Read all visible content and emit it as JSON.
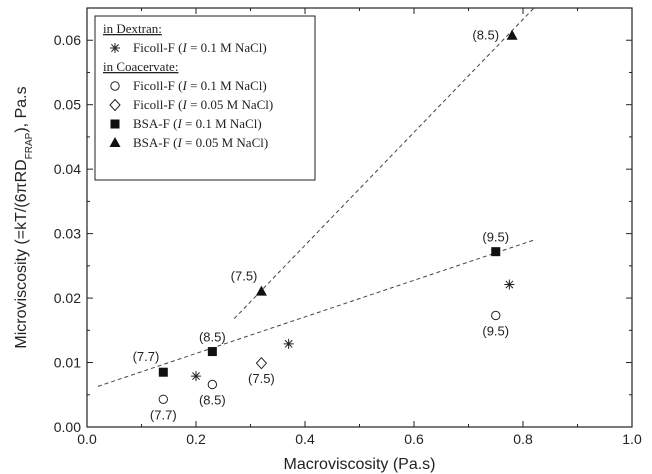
{
  "chart_data": {
    "type": "scatter",
    "xlabel": "Macroviscosity (Pa.s)",
    "ylabel": {
      "pre": "Microviscosity (=kT/(6",
      "pi": "π",
      "mid": "RD",
      "sub": "FRAP",
      "post": "), Pa.s"
    },
    "xlim": [
      0.0,
      1.0
    ],
    "ylim": [
      0.0,
      0.065
    ],
    "x_ticks": [
      "0.0",
      "0.2",
      "0.4",
      "0.6",
      "0.8",
      "1.0"
    ],
    "y_ticks": [
      "0.00",
      "0.01",
      "0.02",
      "0.03",
      "0.04",
      "0.05",
      "0.06"
    ],
    "legend": {
      "position": "top-left",
      "groups": [
        {
          "heading": "in Dextran:",
          "entries": [
            {
              "marker": "star",
              "pre": "Ficoll-F (",
              "ivar": "I",
              "post": " = 0.1 M NaCl)"
            }
          ]
        },
        {
          "heading": "in Coacervate:",
          "entries": [
            {
              "marker": "circle",
              "pre": "Ficoll-F (",
              "ivar": "I",
              "post": " = 0.1 M NaCl)"
            },
            {
              "marker": "diamond",
              "pre": "Ficoll-F (",
              "ivar": "I",
              "post": " = 0.05 M NaCl)"
            },
            {
              "marker": "square",
              "pre": "BSA-F (",
              "ivar": "I",
              "post": " = 0.1 M NaCl)"
            },
            {
              "marker": "triangle",
              "pre": "BSA-F (",
              "ivar": "I",
              "post": " = 0.05 M NaCl)"
            }
          ]
        }
      ]
    },
    "series": [
      {
        "marker": "star",
        "points": [
          [
            0.2,
            0.0079
          ],
          [
            0.37,
            0.0129
          ],
          [
            0.775,
            0.0221
          ]
        ]
      },
      {
        "marker": "circle",
        "points": [
          [
            0.14,
            0.0043,
            "(7.7)",
            "below"
          ],
          [
            0.23,
            0.0066,
            "(8.5)",
            "below"
          ],
          [
            0.75,
            0.0173,
            "(9.5)",
            "below"
          ]
        ]
      },
      {
        "marker": "diamond",
        "points": [
          [
            0.32,
            0.0099,
            "(7.5)",
            "below"
          ]
        ]
      },
      {
        "marker": "square",
        "points": [
          [
            0.14,
            0.0085,
            "(7.7)",
            "above-left"
          ],
          [
            0.23,
            0.0117,
            "(8.5)",
            "above"
          ],
          [
            0.75,
            0.0272,
            "(9.5)",
            "above"
          ]
        ]
      },
      {
        "marker": "triangle",
        "points": [
          [
            0.32,
            0.021,
            "(7.5)",
            "above-left"
          ],
          [
            0.78,
            0.0607,
            "(8.5)",
            "left"
          ]
        ]
      }
    ],
    "fit_lines": [
      {
        "style": "dashed",
        "points": [
          [
            0.02,
            0.0063
          ],
          [
            0.82,
            0.029
          ]
        ]
      },
      {
        "style": "dashed",
        "points": [
          [
            0.27,
            0.0168
          ],
          [
            0.82,
            0.0655
          ]
        ]
      }
    ]
  }
}
